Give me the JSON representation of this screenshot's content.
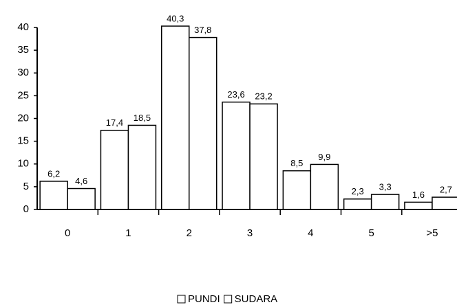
{
  "chart_data": {
    "type": "bar",
    "categories": [
      "0",
      "1",
      "2",
      "3",
      "4",
      "5",
      ">5"
    ],
    "series": [
      {
        "name": "PUNDI",
        "color": "#ffffff",
        "values": [
          6.2,
          17.4,
          40.3,
          23.6,
          8.5,
          2.3,
          1.6
        ],
        "value_labels": [
          "6,2",
          "17,4",
          "40,3",
          "23,6",
          "8,5",
          "2,3",
          "1,6"
        ]
      },
      {
        "name": "SUDARA",
        "color": "#ffffff",
        "values": [
          4.6,
          18.5,
          37.8,
          23.2,
          9.9,
          3.3,
          2.7
        ],
        "value_labels": [
          "4,6",
          "18,5",
          "37,8",
          "23,2",
          "9,9",
          "3,3",
          "2,7"
        ]
      }
    ],
    "ylim": [
      0,
      40
    ],
    "yticks": [
      0,
      5,
      10,
      15,
      20,
      25,
      30,
      35,
      40
    ],
    "grid": false,
    "legend": "bottom"
  }
}
